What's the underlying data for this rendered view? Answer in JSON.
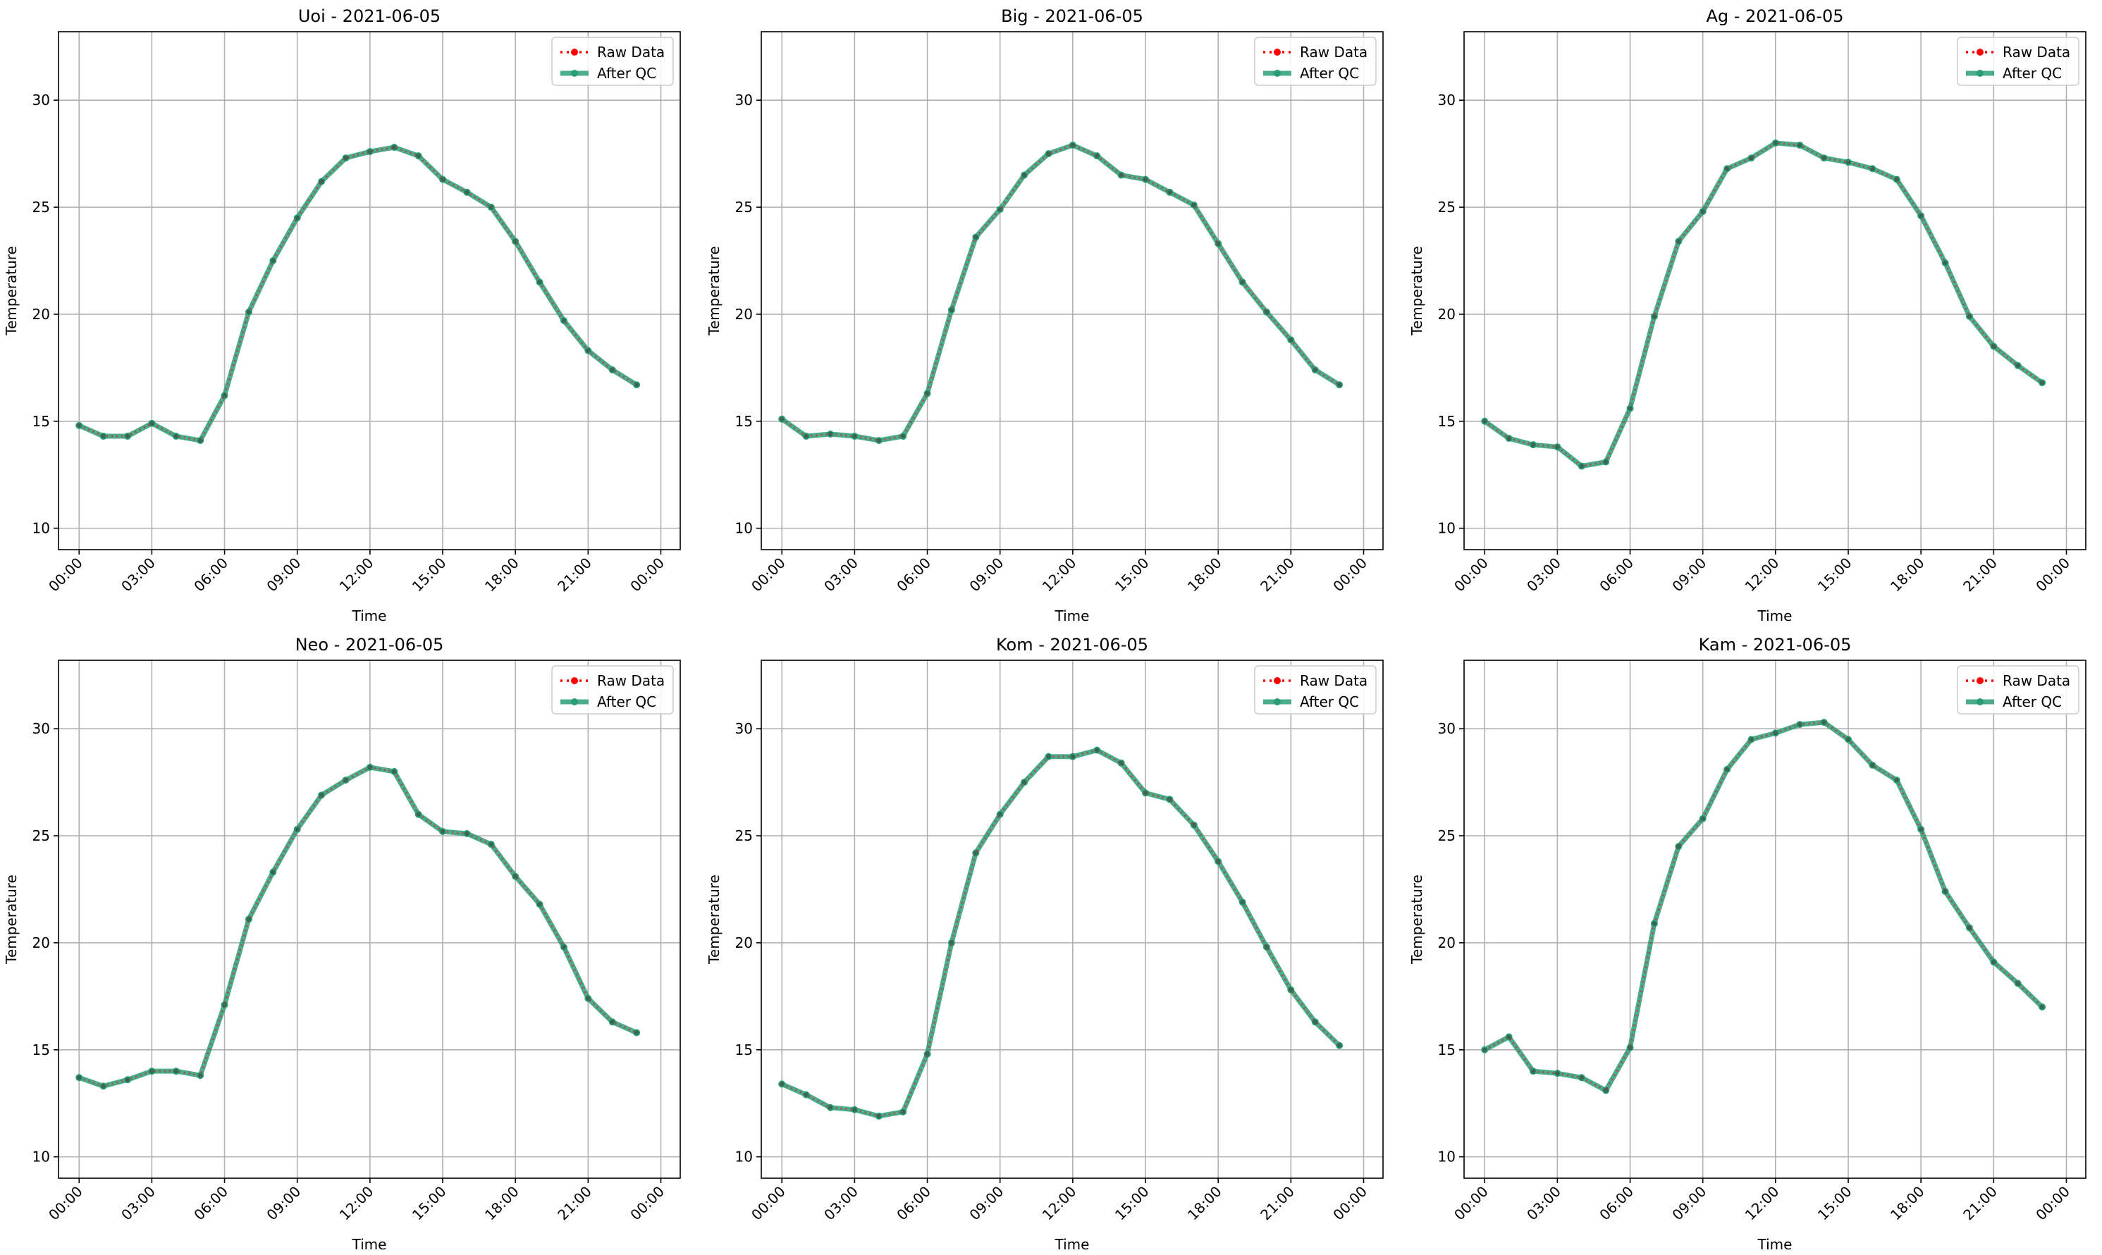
{
  "figure": {
    "legend_labels": {
      "raw": "Raw Data",
      "qc": "After QC"
    },
    "colors": {
      "raw": "#ff0000",
      "qc": "#2a9d78",
      "grid": "#b0b0b0",
      "axis": "#000000"
    }
  },
  "chart_data": [
    {
      "type": "line",
      "title": "Uoi - 2021-06-05",
      "xlabel": "Time",
      "ylabel": "Temperature",
      "x_unit": "hour of day (0-23), date 2021-06-05",
      "x": [
        0,
        1,
        2,
        3,
        4,
        5,
        6,
        7,
        8,
        9,
        10,
        11,
        12,
        13,
        14,
        15,
        16,
        17,
        18,
        19,
        20,
        21,
        22,
        23
      ],
      "xlim": [
        "00:00",
        "00:00 next day"
      ],
      "ylim": [
        9,
        33.2
      ],
      "x_ticks": [
        "00:00",
        "03:00",
        "06:00",
        "09:00",
        "12:00",
        "15:00",
        "18:00",
        "21:00",
        "00:00"
      ],
      "y_ticks": [
        10,
        15,
        20,
        25,
        30
      ],
      "legend": "top-right",
      "grid": true,
      "series": [
        {
          "name": "Raw Data",
          "values": [
            14.8,
            14.3,
            14.3,
            14.9,
            14.3,
            14.1,
            16.2,
            20.1,
            22.5,
            24.5,
            26.2,
            27.3,
            27.6,
            27.8,
            27.4,
            26.3,
            25.7,
            25.0,
            23.4,
            21.5,
            19.7,
            18.3,
            17.4,
            16.7
          ]
        },
        {
          "name": "After QC",
          "values": [
            14.8,
            14.3,
            14.3,
            14.9,
            14.3,
            14.1,
            16.2,
            20.1,
            22.5,
            24.5,
            26.2,
            27.3,
            27.6,
            27.8,
            27.4,
            26.3,
            25.7,
            25.0,
            23.4,
            21.5,
            19.7,
            18.3,
            17.4,
            16.7
          ]
        }
      ]
    },
    {
      "type": "line",
      "title": "Big - 2021-06-05",
      "xlabel": "Time",
      "ylabel": "Temperature",
      "x_unit": "hour of day (0-23), date 2021-06-05",
      "x": [
        0,
        1,
        2,
        3,
        4,
        5,
        6,
        7,
        8,
        9,
        10,
        11,
        12,
        13,
        14,
        15,
        16,
        17,
        18,
        19,
        20,
        21,
        22,
        23
      ],
      "xlim": [
        "00:00",
        "00:00 next day"
      ],
      "ylim": [
        9,
        33.2
      ],
      "x_ticks": [
        "00:00",
        "03:00",
        "06:00",
        "09:00",
        "12:00",
        "15:00",
        "18:00",
        "21:00",
        "00:00"
      ],
      "y_ticks": [
        10,
        15,
        20,
        25,
        30
      ],
      "legend": "top-right",
      "grid": true,
      "series": [
        {
          "name": "Raw Data",
          "values": [
            15.1,
            14.3,
            14.4,
            14.3,
            14.1,
            14.3,
            16.3,
            20.2,
            23.6,
            24.9,
            26.5,
            27.5,
            27.9,
            27.4,
            26.5,
            26.3,
            25.7,
            25.1,
            23.3,
            21.5,
            20.1,
            18.8,
            17.4,
            16.7
          ]
        },
        {
          "name": "After QC",
          "values": [
            15.1,
            14.3,
            14.4,
            14.3,
            14.1,
            14.3,
            16.3,
            20.2,
            23.6,
            24.9,
            26.5,
            27.5,
            27.9,
            27.4,
            26.5,
            26.3,
            25.7,
            25.1,
            23.3,
            21.5,
            20.1,
            18.8,
            17.4,
            16.7
          ]
        }
      ]
    },
    {
      "type": "line",
      "title": "Ag - 2021-06-05",
      "xlabel": "Time",
      "ylabel": "Temperature",
      "x_unit": "hour of day (0-23), date 2021-06-05",
      "x": [
        0,
        1,
        2,
        3,
        4,
        5,
        6,
        7,
        8,
        9,
        10,
        11,
        12,
        13,
        14,
        15,
        16,
        17,
        18,
        19,
        20,
        21,
        22,
        23
      ],
      "xlim": [
        "00:00",
        "00:00 next day"
      ],
      "ylim": [
        9,
        33.2
      ],
      "x_ticks": [
        "00:00",
        "03:00",
        "06:00",
        "09:00",
        "12:00",
        "15:00",
        "18:00",
        "21:00",
        "00:00"
      ],
      "y_ticks": [
        10,
        15,
        20,
        25,
        30
      ],
      "legend": "top-right",
      "grid": true,
      "series": [
        {
          "name": "Raw Data",
          "values": [
            15.0,
            14.2,
            13.9,
            13.8,
            12.9,
            13.1,
            15.6,
            19.9,
            23.4,
            24.8,
            26.8,
            27.3,
            28.0,
            27.9,
            27.3,
            27.1,
            26.8,
            26.3,
            24.6,
            22.4,
            19.9,
            18.5,
            17.6,
            16.8
          ]
        },
        {
          "name": "After QC",
          "values": [
            15.0,
            14.2,
            13.9,
            13.8,
            12.9,
            13.1,
            15.6,
            19.9,
            23.4,
            24.8,
            26.8,
            27.3,
            28.0,
            27.9,
            27.3,
            27.1,
            26.8,
            26.3,
            24.6,
            22.4,
            19.9,
            18.5,
            17.6,
            16.8
          ]
        }
      ]
    },
    {
      "type": "line",
      "title": "Neo - 2021-06-05",
      "xlabel": "Time",
      "ylabel": "Temperature",
      "x_unit": "hour of day (0-23), date 2021-06-05",
      "x": [
        0,
        1,
        2,
        3,
        4,
        5,
        6,
        7,
        8,
        9,
        10,
        11,
        12,
        13,
        14,
        15,
        16,
        17,
        18,
        19,
        20,
        21,
        22,
        23
      ],
      "xlim": [
        "00:00",
        "00:00 next day"
      ],
      "ylim": [
        9,
        33.2
      ],
      "x_ticks": [
        "00:00",
        "03:00",
        "06:00",
        "09:00",
        "12:00",
        "15:00",
        "18:00",
        "21:00",
        "00:00"
      ],
      "y_ticks": [
        10,
        15,
        20,
        25,
        30
      ],
      "legend": "top-right",
      "grid": true,
      "series": [
        {
          "name": "Raw Data",
          "values": [
            13.7,
            13.3,
            13.6,
            14.0,
            14.0,
            13.8,
            17.1,
            21.1,
            23.3,
            25.3,
            26.9,
            27.6,
            28.2,
            28.0,
            26.0,
            25.2,
            25.1,
            24.6,
            23.1,
            21.8,
            19.8,
            17.4,
            16.3,
            15.8
          ]
        },
        {
          "name": "After QC",
          "values": [
            13.7,
            13.3,
            13.6,
            14.0,
            14.0,
            13.8,
            17.1,
            21.1,
            23.3,
            25.3,
            26.9,
            27.6,
            28.2,
            28.0,
            26.0,
            25.2,
            25.1,
            24.6,
            23.1,
            21.8,
            19.8,
            17.4,
            16.3,
            15.8
          ]
        }
      ]
    },
    {
      "type": "line",
      "title": "Kom - 2021-06-05",
      "xlabel": "Time",
      "ylabel": "Temperature",
      "x_unit": "hour of day (0-23), date 2021-06-05",
      "x": [
        0,
        1,
        2,
        3,
        4,
        5,
        6,
        7,
        8,
        9,
        10,
        11,
        12,
        13,
        14,
        15,
        16,
        17,
        18,
        19,
        20,
        21,
        22,
        23
      ],
      "xlim": [
        "00:00",
        "00:00 next day"
      ],
      "ylim": [
        9,
        33.2
      ],
      "x_ticks": [
        "00:00",
        "03:00",
        "06:00",
        "09:00",
        "12:00",
        "15:00",
        "18:00",
        "21:00",
        "00:00"
      ],
      "y_ticks": [
        10,
        15,
        20,
        25,
        30
      ],
      "legend": "top-right",
      "grid": true,
      "series": [
        {
          "name": "Raw Data",
          "values": [
            13.4,
            12.9,
            12.3,
            12.2,
            11.9,
            12.1,
            14.8,
            20.0,
            24.2,
            26.0,
            27.5,
            28.7,
            28.7,
            29.0,
            28.4,
            27.0,
            26.7,
            25.5,
            23.8,
            21.9,
            19.8,
            17.8,
            16.3,
            15.2
          ]
        },
        {
          "name": "After QC",
          "values": [
            13.4,
            12.9,
            12.3,
            12.2,
            11.9,
            12.1,
            14.8,
            20.0,
            24.2,
            26.0,
            27.5,
            28.7,
            28.7,
            29.0,
            28.4,
            27.0,
            26.7,
            25.5,
            23.8,
            21.9,
            19.8,
            17.8,
            16.3,
            15.2
          ]
        }
      ]
    },
    {
      "type": "line",
      "title": "Kam - 2021-06-05",
      "xlabel": "Time",
      "ylabel": "Temperature",
      "x_unit": "hour of day (0-23), date 2021-06-05",
      "x": [
        0,
        1,
        2,
        3,
        4,
        5,
        6,
        7,
        8,
        9,
        10,
        11,
        12,
        13,
        14,
        15,
        16,
        17,
        18,
        19,
        20,
        21,
        22,
        23
      ],
      "xlim": [
        "00:00",
        "00:00 next day"
      ],
      "ylim": [
        9,
        33.2
      ],
      "x_ticks": [
        "00:00",
        "03:00",
        "06:00",
        "09:00",
        "12:00",
        "15:00",
        "18:00",
        "21:00",
        "00:00"
      ],
      "y_ticks": [
        10,
        15,
        20,
        25,
        30
      ],
      "legend": "top-right",
      "grid": true,
      "series": [
        {
          "name": "Raw Data",
          "values": [
            15.0,
            15.6,
            14.0,
            13.9,
            13.7,
            13.1,
            15.1,
            20.9,
            24.5,
            25.8,
            28.1,
            29.5,
            29.8,
            30.2,
            30.3,
            29.5,
            28.3,
            27.6,
            25.3,
            22.4,
            20.7,
            19.1,
            18.1,
            17.0
          ]
        },
        {
          "name": "After QC",
          "values": [
            15.0,
            15.6,
            14.0,
            13.9,
            13.7,
            13.1,
            15.1,
            20.9,
            24.5,
            25.8,
            28.1,
            29.5,
            29.8,
            30.2,
            30.3,
            29.5,
            28.3,
            27.6,
            25.3,
            22.4,
            20.7,
            19.1,
            18.1,
            17.0
          ]
        }
      ]
    }
  ]
}
